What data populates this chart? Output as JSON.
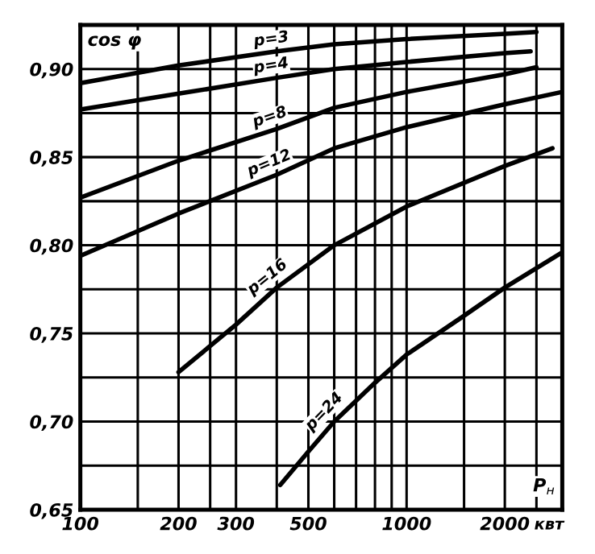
{
  "chart_data": {
    "type": "line",
    "ylabel": "cos φ",
    "xlabel": "P$_{н}$",
    "annotations": [
      "квт"
    ],
    "log": "x",
    "grid": true,
    "marker": "none",
    "line_style": "solid",
    "xlim": [
      100,
      3000
    ],
    "ylim": [
      0.65,
      0.925
    ],
    "xticks": [
      100,
      {
        "value": 150,
        "label": null
      },
      200,
      {
        "value": 250,
        "label": null
      },
      300,
      {
        "value": 400,
        "label": null
      },
      500,
      {
        "value": 600,
        "label": null
      },
      {
        "value": 700,
        "label": null
      },
      {
        "value": 800,
        "label": null
      },
      {
        "value": 900,
        "label": null
      },
      1000,
      {
        "value": 1500,
        "label": null
      },
      2000,
      {
        "value": 2500,
        "label": null
      }
    ],
    "yticks": [
      {
        "value": 0.65,
        "label": "0,65"
      },
      {
        "value": 0.675,
        "label": null
      },
      {
        "value": 0.7,
        "label": "0,70"
      },
      {
        "value": 0.725,
        "label": null
      },
      {
        "value": 0.75,
        "label": "0,75"
      },
      {
        "value": 0.775,
        "label": null
      },
      {
        "value": 0.8,
        "label": "0,80"
      },
      {
        "value": 0.825,
        "label": null
      },
      {
        "value": 0.85,
        "label": "0,85"
      },
      {
        "value": 0.875,
        "label": null
      },
      {
        "value": 0.9,
        "label": "0,90"
      }
    ],
    "series": [
      {
        "name": "p=3",
        "color": "#000000",
        "x": [
          100,
          200,
          400,
          600,
          1000,
          2000,
          2500
        ],
        "values": [
          0.892,
          0.902,
          0.91,
          0.914,
          0.917,
          0.92,
          0.921
        ]
      },
      {
        "name": "p=4",
        "color": "#000000",
        "x": [
          100,
          200,
          400,
          600,
          1000,
          2000,
          2400
        ],
        "values": [
          0.877,
          0.886,
          0.895,
          0.9,
          0.904,
          0.909,
          0.91
        ]
      },
      {
        "name": "p=8",
        "color": "#000000",
        "x": [
          100,
          200,
          400,
          600,
          1000,
          2000,
          2500
        ],
        "values": [
          0.827,
          0.848,
          0.866,
          0.878,
          0.887,
          0.897,
          0.901
        ]
      },
      {
        "name": "p=12",
        "color": "#000000",
        "x": [
          100,
          200,
          400,
          600,
          1000,
          2000,
          3000
        ],
        "values": [
          0.794,
          0.818,
          0.84,
          0.855,
          0.867,
          0.88,
          0.887
        ]
      },
      {
        "name": "p=16",
        "color": "#000000",
        "x": [
          200,
          300,
          400,
          600,
          1000,
          2000,
          2800
        ],
        "values": [
          0.728,
          0.755,
          0.776,
          0.8,
          0.822,
          0.845,
          0.855
        ]
      },
      {
        "name": "p=24",
        "color": "#000000",
        "x": [
          410,
          500,
          600,
          800,
          1000,
          1500,
          2000,
          3000
        ],
        "values": [
          0.664,
          0.683,
          0.7,
          0.722,
          0.738,
          0.76,
          0.776,
          0.796
        ]
      }
    ]
  }
}
